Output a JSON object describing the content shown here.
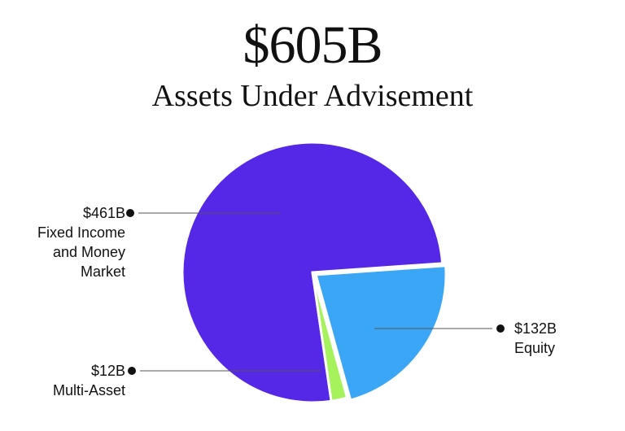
{
  "chart_data": {
    "type": "pie",
    "title": "$605B",
    "subtitle": "Assets Under Advisement",
    "categories": [
      "Equity",
      "Multi-Asset",
      "Fixed Income and Money Market"
    ],
    "values": [
      132,
      12,
      461
    ],
    "value_labels": [
      "$132B",
      "$12B",
      "$461B"
    ],
    "colors": [
      "#3aa6f5",
      "#a6f25c",
      "#5527e6"
    ]
  }
}
